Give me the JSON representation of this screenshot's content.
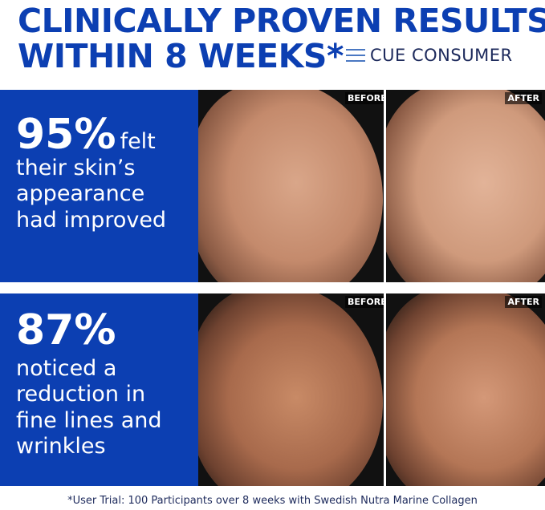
{
  "header": {
    "line1": "CLINICALLY PROVEN RESULTS",
    "line2": "WITHIN 8 WEEKS*",
    "logo": "CUE CONSUMER"
  },
  "panels": [
    {
      "stat": "95%",
      "text_inline": "felt",
      "text_lines": [
        "their skin’s",
        "appearance",
        "had improved"
      ],
      "before": "BEFORE",
      "after": "AFTER"
    },
    {
      "stat": "87%",
      "text_lines": [
        "noticed a",
        "reduction in",
        "fine lines and",
        "wrinkles"
      ],
      "before": "BEFORE",
      "after": "AFTER"
    }
  ],
  "footnote": "*User Trial: 100 Participants over 8 weeks with Swedish Nutra Marine Collagen",
  "colors": {
    "brand_blue": "#0c3fb2",
    "logo_navy": "#1d2a5c"
  }
}
